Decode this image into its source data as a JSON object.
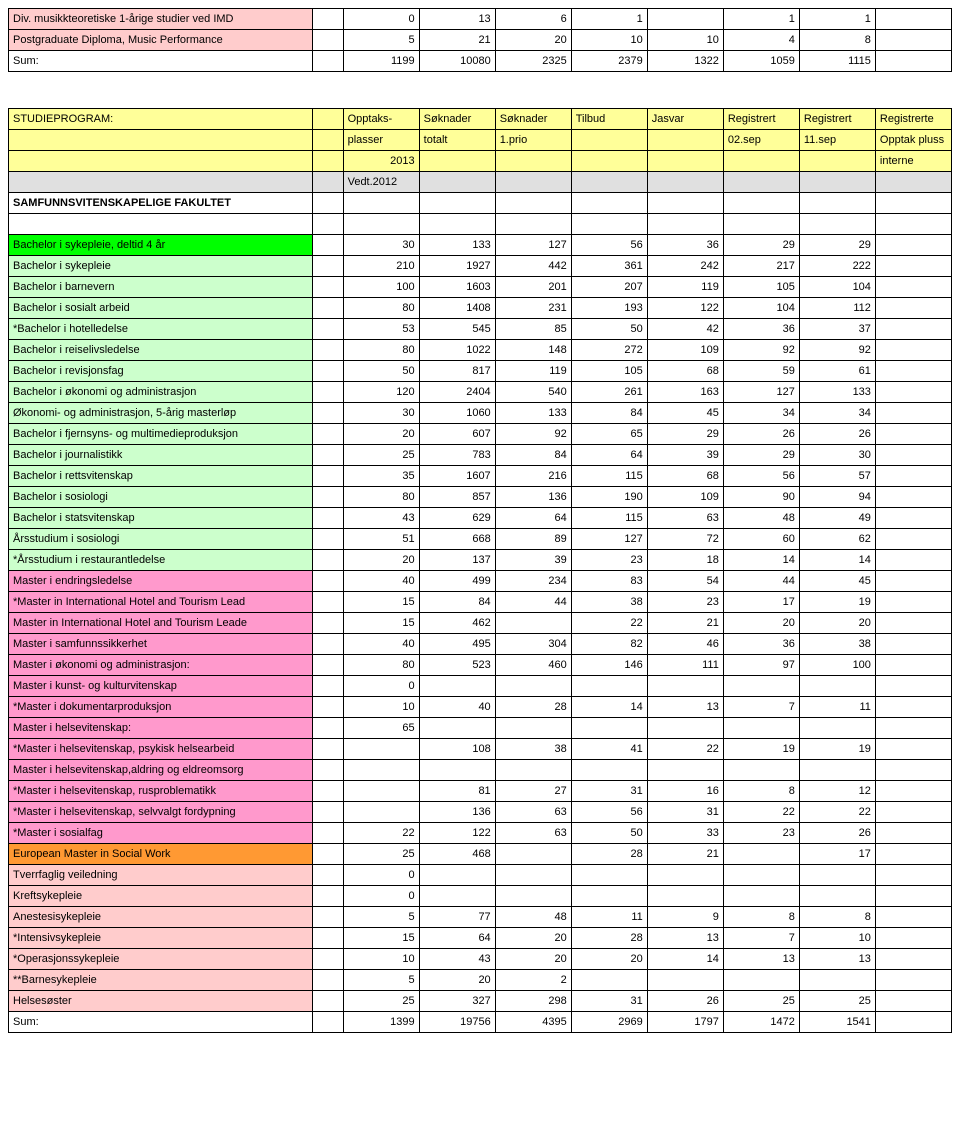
{
  "colors": {
    "white": "#ffffff",
    "lightpink": "#ffcccc",
    "darkpink": "#ff99cc",
    "lightgreen": "#ccffcc",
    "brightgreen": "#00ff00",
    "orange": "#ff9933",
    "yellow": "#ffff99",
    "grey": "#e0e0e0",
    "headerblue": "#99ccff"
  },
  "top_rows": [
    {
      "bg": "lightpink",
      "name": "Div. musikkteoretiske 1-årige studier ved IMD",
      "v": [
        "0",
        "13",
        "6",
        "1",
        "",
        "1",
        "1"
      ]
    },
    {
      "bg": "lightpink",
      "name": "Postgraduate Diploma, Music Performance",
      "v": [
        "5",
        "21",
        "20",
        "10",
        "10",
        "4",
        "8"
      ]
    },
    {
      "bg": "white",
      "name": "Sum:",
      "v": [
        "1199",
        "10080",
        "2325",
        "2379",
        "1322",
        "1059",
        "1115"
      ]
    }
  ],
  "header_block": {
    "r1": {
      "c0": "STUDIEPROGRAM:",
      "c2": "Opptaks-",
      "c3": "Søknader",
      "c4": "Søknader",
      "c5": "Tilbud",
      "c6": "Jasvar",
      "c7": "Registrert",
      "c8": "Registrert",
      "c9": "Registrerte"
    },
    "r2": {
      "c2": "plasser",
      "c3": "totalt",
      "c4": "1.prio",
      "c7": "02.sep",
      "c8": "11.sep",
      "c9": "Opptak pluss"
    },
    "r3": {
      "c2": "2013",
      "c9": "interne"
    },
    "r4": {
      "c2": "Vedt.2012"
    },
    "r5": {
      "c0": "SAMFUNNSVITENSKAPELIGE FAKULTET"
    }
  },
  "main_rows": [
    {
      "bg": "brightgreen",
      "name": "Bachelor i sykepleie, deltid 4 år",
      "v": [
        "30",
        "133",
        "127",
        "56",
        "36",
        "29",
        "29"
      ]
    },
    {
      "bg": "lightgreen",
      "name": "Bachelor i sykepleie",
      "v": [
        "210",
        "1927",
        "442",
        "361",
        "242",
        "217",
        "222"
      ]
    },
    {
      "bg": "lightgreen",
      "name": "Bachelor i barnevern",
      "v": [
        "100",
        "1603",
        "201",
        "207",
        "119",
        "105",
        "104"
      ]
    },
    {
      "bg": "lightgreen",
      "name": "Bachelor i sosialt arbeid",
      "v": [
        "80",
        "1408",
        "231",
        "193",
        "122",
        "104",
        "112"
      ]
    },
    {
      "bg": "lightgreen",
      "name": "*Bachelor i hotelledelse",
      "v": [
        "53",
        "545",
        "85",
        "50",
        "42",
        "36",
        "37"
      ]
    },
    {
      "bg": "lightgreen",
      "name": "Bachelor i reiselivsledelse",
      "v": [
        "80",
        "1022",
        "148",
        "272",
        "109",
        "92",
        "92"
      ]
    },
    {
      "bg": "lightgreen",
      "name": "Bachelor i revisjonsfag",
      "v": [
        "50",
        "817",
        "119",
        "105",
        "68",
        "59",
        "61"
      ]
    },
    {
      "bg": "lightgreen",
      "name": "Bachelor i økonomi og administrasjon",
      "v": [
        "120",
        "2404",
        "540",
        "261",
        "163",
        "127",
        "133"
      ]
    },
    {
      "bg": "lightgreen",
      "name": "Økonomi- og administrasjon, 5-årig masterløp",
      "v": [
        "30",
        "1060",
        "133",
        "84",
        "45",
        "34",
        "34"
      ]
    },
    {
      "bg": "lightgreen",
      "name": "Bachelor i fjernsyns- og multimedieproduksjon",
      "v": [
        "20",
        "607",
        "92",
        "65",
        "29",
        "26",
        "26"
      ]
    },
    {
      "bg": "lightgreen",
      "name": "Bachelor i journalistikk",
      "v": [
        "25",
        "783",
        "84",
        "64",
        "39",
        "29",
        "30"
      ]
    },
    {
      "bg": "lightgreen",
      "name": "Bachelor i rettsvitenskap",
      "v": [
        "35",
        "1607",
        "216",
        "115",
        "68",
        "56",
        "57"
      ]
    },
    {
      "bg": "lightgreen",
      "name": "Bachelor i sosiologi",
      "v": [
        "80",
        "857",
        "136",
        "190",
        "109",
        "90",
        "94"
      ]
    },
    {
      "bg": "lightgreen",
      "name": "Bachelor i statsvitenskap",
      "v": [
        "43",
        "629",
        "64",
        "115",
        "63",
        "48",
        "49"
      ]
    },
    {
      "bg": "lightgreen",
      "name": "Årsstudium i sosiologi",
      "v": [
        "51",
        "668",
        "89",
        "127",
        "72",
        "60",
        "62"
      ]
    },
    {
      "bg": "lightgreen",
      "name": "*Årsstudium i restaurantledelse",
      "v": [
        "20",
        "137",
        "39",
        "23",
        "18",
        "14",
        "14"
      ]
    },
    {
      "bg": "darkpink",
      "name": "Master i endringsledelse",
      "v": [
        "40",
        "499",
        "234",
        "83",
        "54",
        "44",
        "45"
      ]
    },
    {
      "bg": "darkpink",
      "name": "*Master in International Hotel and Tourism Lead",
      "v": [
        "15",
        "84",
        "44",
        "38",
        "23",
        "17",
        "19"
      ]
    },
    {
      "bg": "darkpink",
      "name": "Master in International Hotel and Tourism Leade",
      "v": [
        "15",
        "462",
        "",
        "22",
        "21",
        "20",
        "20"
      ]
    },
    {
      "bg": "darkpink",
      "name": "Master i samfunnssikkerhet",
      "v": [
        "40",
        "495",
        "304",
        "82",
        "46",
        "36",
        "38"
      ]
    },
    {
      "bg": "darkpink",
      "name": "Master i økonomi og administrasjon:",
      "v": [
        "80",
        "523",
        "460",
        "146",
        "111",
        "97",
        "100"
      ]
    },
    {
      "bg": "darkpink",
      "name": "Master i kunst- og kulturvitenskap",
      "v": [
        "0",
        "",
        "",
        "",
        "",
        "",
        ""
      ]
    },
    {
      "bg": "darkpink",
      "name": "*Master i dokumentarproduksjon",
      "v": [
        "10",
        "40",
        "28",
        "14",
        "13",
        "7",
        "11"
      ]
    },
    {
      "bg": "darkpink",
      "name": "Master i helsevitenskap:",
      "v": [
        "65",
        "",
        "",
        "",
        "",
        "",
        ""
      ]
    },
    {
      "bg": "darkpink",
      "name": "*Master i helsevitenskap, psykisk helsearbeid",
      "v": [
        "",
        "108",
        "38",
        "41",
        "22",
        "19",
        "19"
      ]
    },
    {
      "bg": "darkpink",
      "name": "Master i helsevitenskap,aldring og eldreomsorg",
      "v": [
        "",
        "",
        "",
        "",
        "",
        "",
        ""
      ]
    },
    {
      "bg": "darkpink",
      "name": "*Master i helsevitenskap, rusproblematikk",
      "v": [
        "",
        "81",
        "27",
        "31",
        "16",
        "8",
        "12"
      ]
    },
    {
      "bg": "darkpink",
      "name": "*Master i helsevitenskap, selvvalgt fordypning",
      "v": [
        "",
        "136",
        "63",
        "56",
        "31",
        "22",
        "22"
      ]
    },
    {
      "bg": "darkpink",
      "name": "*Master i sosialfag",
      "v": [
        "22",
        "122",
        "63",
        "50",
        "33",
        "23",
        "26"
      ]
    },
    {
      "bg": "orange",
      "name": "European Master in Social Work",
      "v": [
        "25",
        "468",
        "",
        "28",
        "21",
        "",
        "17"
      ]
    },
    {
      "bg": "lightpink",
      "name": "Tverrfaglig veiledning",
      "v": [
        "0",
        "",
        "",
        "",
        "",
        "",
        ""
      ]
    },
    {
      "bg": "lightpink",
      "name": "Kreftsykepleie",
      "v": [
        "0",
        "",
        "",
        "",
        "",
        "",
        ""
      ]
    },
    {
      "bg": "lightpink",
      "name": "Anestesisykepleie",
      "v": [
        "5",
        "77",
        "48",
        "11",
        "9",
        "8",
        "8"
      ]
    },
    {
      "bg": "lightpink",
      "name": "*Intensivsykepleie",
      "v": [
        "15",
        "64",
        "20",
        "28",
        "13",
        "7",
        "10"
      ]
    },
    {
      "bg": "lightpink",
      "name": "*Operasjonssykepleie",
      "v": [
        "10",
        "43",
        "20",
        "20",
        "14",
        "13",
        "13"
      ]
    },
    {
      "bg": "lightpink",
      "name": "**Barnesykepleie",
      "v": [
        "5",
        "20",
        "2",
        "",
        "",
        "",
        ""
      ]
    },
    {
      "bg": "lightpink",
      "name": "Helsesøster",
      "v": [
        "25",
        "327",
        "298",
        "31",
        "26",
        "25",
        "25"
      ]
    },
    {
      "bg": "white",
      "name": "Sum:",
      "v": [
        "1399",
        "19756",
        "4395",
        "2969",
        "1797",
        "1472",
        "1541"
      ]
    }
  ]
}
